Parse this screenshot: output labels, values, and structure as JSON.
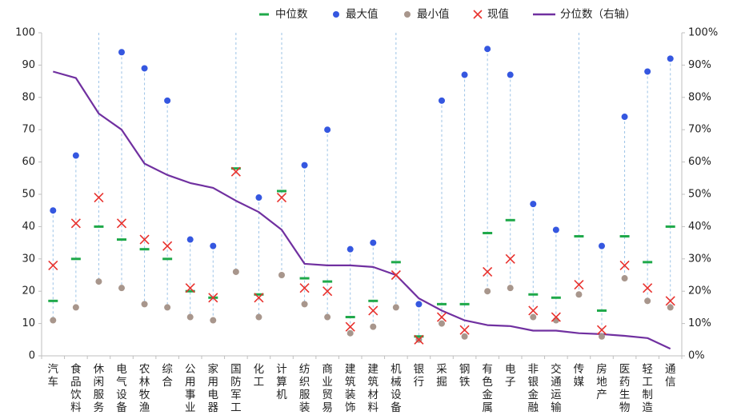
{
  "chart_data": {
    "type": "line",
    "categories": [
      "汽车",
      "食品饮料",
      "休闲服务",
      "电气设备",
      "农林牧渔",
      "综合",
      "公用事业",
      "家用电器",
      "国防军工",
      "化工",
      "计算机",
      "纺织服装",
      "商业贸易",
      "建筑装饰",
      "建筑材料",
      "机械设备",
      "银行",
      "采掘",
      "钢铁",
      "有色金属",
      "电子",
      "非银金融",
      "交通运输",
      "传媒",
      "房地产",
      "医药生物",
      "轻工制造",
      "通信"
    ],
    "category_label_lines": [
      [
        "汽",
        "车"
      ],
      [
        "食",
        "品",
        "饮",
        "料"
      ],
      [
        "休",
        "闲",
        "服",
        "务"
      ],
      [
        "电",
        "气",
        "设",
        "备"
      ],
      [
        "农",
        "林",
        "牧",
        "渔"
      ],
      [
        "综",
        "合"
      ],
      [
        "公",
        "用",
        "事",
        "业"
      ],
      [
        "家",
        "用",
        "电",
        "器"
      ],
      [
        "国",
        "防",
        "军",
        "工"
      ],
      [
        "化",
        "工"
      ],
      [
        "计",
        "算",
        "机"
      ],
      [
        "纺",
        "织",
        "服",
        "装"
      ],
      [
        "商",
        "业",
        "贸",
        "易"
      ],
      [
        "建",
        "筑",
        "装",
        "饰"
      ],
      [
        "建",
        "筑",
        "材",
        "料"
      ],
      [
        "机",
        "械",
        "设",
        "备"
      ],
      [
        "银",
        "行"
      ],
      [
        "采",
        "掘"
      ],
      [
        "钢",
        "铁"
      ],
      [
        "有",
        "色",
        "金",
        "属"
      ],
      [
        "电",
        "子"
      ],
      [
        "非",
        "银",
        "金",
        "融"
      ],
      [
        "交",
        "通",
        "运",
        "输"
      ],
      [
        "传",
        "媒"
      ],
      [
        "房",
        "地",
        "产"
      ],
      [
        "医",
        "药",
        "生",
        "物"
      ],
      [
        "轻",
        "工",
        "制",
        "造"
      ],
      [
        "通",
        "信"
      ]
    ],
    "series": [
      {
        "name": "中位数",
        "marker": "dash",
        "color": "#1fa94a",
        "axis": "left",
        "values": [
          17,
          30,
          40,
          36,
          33,
          30,
          20,
          18,
          58,
          19,
          51,
          24,
          23,
          12,
          17,
          29,
          6,
          16,
          16,
          38,
          42,
          19,
          18,
          37,
          14,
          37,
          29,
          40
        ]
      },
      {
        "name": "最大值",
        "marker": "circle",
        "color": "#3557e0",
        "axis": "left",
        "values": [
          45,
          62,
          null,
          94,
          89,
          79,
          36,
          34,
          null,
          49,
          null,
          59,
          70,
          33,
          35,
          null,
          16,
          79,
          87,
          95,
          87,
          47,
          39,
          null,
          34,
          74,
          88,
          92
        ]
      },
      {
        "name": "最小值",
        "marker": "circle",
        "color": "#a8968c",
        "axis": "left",
        "values": [
          11,
          15,
          23,
          21,
          16,
          15,
          12,
          11,
          26,
          12,
          25,
          16,
          12,
          7,
          9,
          15,
          5,
          10,
          6,
          20,
          21,
          12,
          11,
          19,
          6,
          24,
          17,
          15
        ]
      },
      {
        "name": "现值",
        "marker": "x",
        "color": "#e8322e",
        "axis": "left",
        "values": [
          28,
          41,
          49,
          41,
          36,
          34,
          21,
          18,
          57,
          18,
          49,
          21,
          20,
          9,
          14,
          25,
          5,
          12,
          8,
          26,
          30,
          14,
          12,
          22,
          8,
          28,
          21,
          17
        ]
      },
      {
        "name": "分位数（右轴）",
        "marker": "line",
        "color": "#7030a0",
        "axis": "right",
        "values": [
          88,
          86,
          75,
          70,
          59.5,
          56,
          53.5,
          52,
          48,
          44.5,
          39,
          28.5,
          28,
          28,
          27.5,
          25,
          17.8,
          14,
          11,
          9.5,
          9.2,
          7.8,
          7.8,
          7,
          6.7,
          6.2,
          5.5,
          2.2
        ]
      }
    ],
    "y_left": {
      "min": 0,
      "max": 100,
      "ticks": [
        "0",
        "10",
        "20",
        "30",
        "40",
        "50",
        "60",
        "70",
        "80",
        "90",
        "100"
      ]
    },
    "y_right": {
      "min": 0,
      "max": 100,
      "ticks": [
        "0%",
        "10%",
        "20%",
        "30%",
        "40%",
        "50%",
        "60%",
        "70%",
        "80%",
        "90%",
        "100%"
      ]
    },
    "legend_position": "top",
    "grid": false,
    "dashed_range_lines": true
  }
}
